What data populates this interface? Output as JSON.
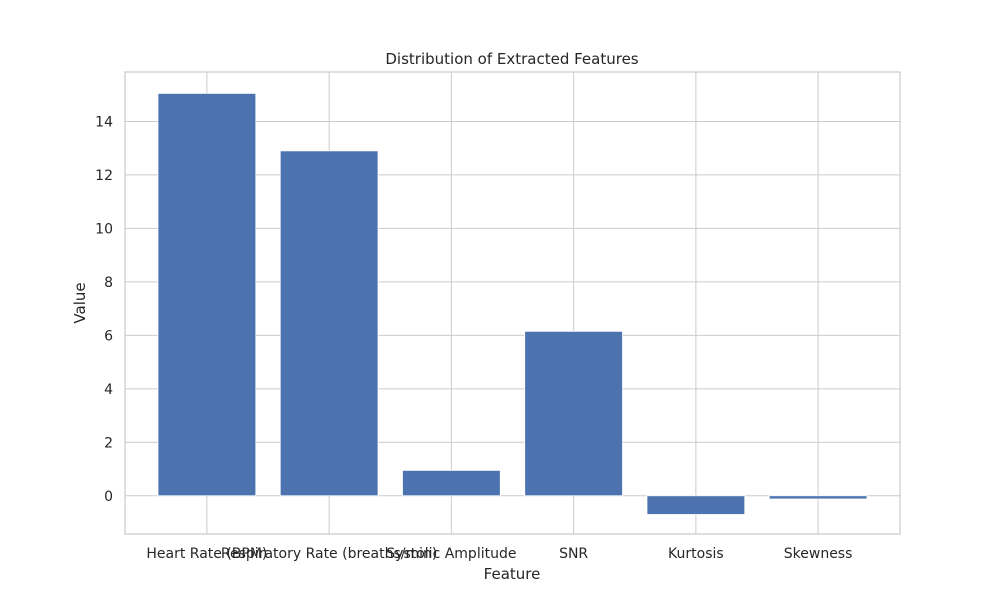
{
  "chart_data": {
    "type": "bar",
    "title": "Distribution of Extracted Features",
    "xlabel": "Feature",
    "ylabel": "Value",
    "categories": [
      "Heart Rate (BPM)",
      "Respiratory Rate (breaths/min)",
      "Systolic Amplitude",
      "SNR",
      "Kurtosis",
      "Skewness"
    ],
    "values": [
      15.05,
      12.9,
      0.95,
      6.15,
      -0.7,
      -0.12
    ],
    "ylim": [
      -1.43,
      15.85
    ],
    "yticks": [
      0,
      2,
      4,
      6,
      8,
      10,
      12,
      14
    ],
    "ytick_labels": [
      "0",
      "2",
      "4",
      "6",
      "8",
      "10",
      "12",
      "14"
    ],
    "grid": true,
    "legend": "none",
    "colors": {
      "bar": "#4c72b0",
      "grid": "#cccccc",
      "spine": "#cccccc",
      "text": "#262626",
      "background": "#ffffff"
    }
  }
}
